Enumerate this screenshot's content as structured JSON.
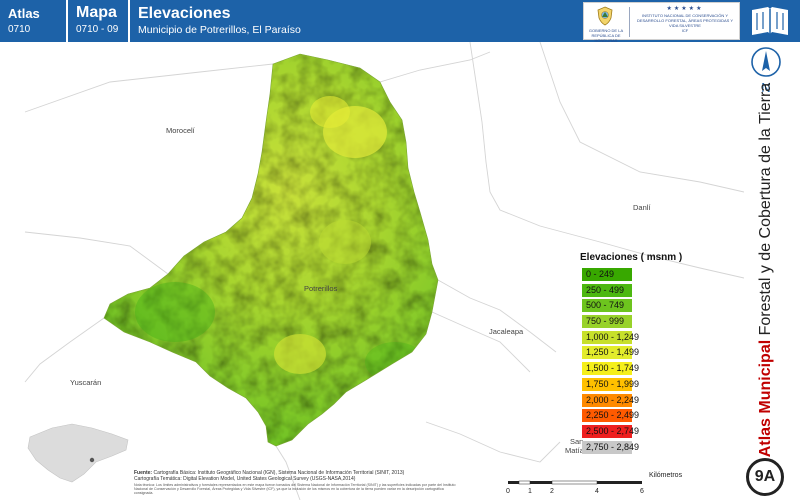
{
  "header": {
    "atlas_label": "Atlas",
    "atlas_code": "0710",
    "mapa_label": "Mapa",
    "mapa_code": "0710 - 09",
    "title": "Elevaciones",
    "subtitle": "Municipio de Potrerillos, El Paraíso"
  },
  "logos": {
    "gov_text": "GOBIERNO DE LA REPÚBLICA DE HONDURAS",
    "icf_stars": "★★★★★",
    "icf_text": "INSTITUTO NACIONAL DE CONSERVACIÓN Y DESARROLLO FORESTAL, ÁREAS PROTEGIDAS Y VIDA SILVESTRE",
    "icf_acronym": "ICF"
  },
  "sidebar": {
    "north": "N",
    "title_bold": "Atlas Municipal",
    "title_rest": " Forestal y de Cobertura de la Tierra",
    "badge": "9A"
  },
  "map": {
    "places": {
      "morocell": "Morocelí",
      "danli": "Danlí",
      "potrerillos": "Potrerillos",
      "jacaleapa": "Jacaleapa",
      "yuscaran": "Yuscarán",
      "san_matias_1": "San",
      "san_matias_2": "Matías"
    }
  },
  "legend": {
    "title": "Elevaciones ( msnm )",
    "items": [
      {
        "label": "0 - 249",
        "color": "#38a800"
      },
      {
        "label": "250 - 499",
        "color": "#4db810"
      },
      {
        "label": "500 - 749",
        "color": "#6dc41e"
      },
      {
        "label": "750 - 999",
        "color": "#98d22a"
      },
      {
        "label": "1,000 - 1,249",
        "color": "#c7e02b"
      },
      {
        "label": "1,250 - 1,499",
        "color": "#e3ec2c"
      },
      {
        "label": "1,500 - 1,749",
        "color": "#f5ef1a"
      },
      {
        "label": "1,750 - 1,999",
        "color": "#ffc000"
      },
      {
        "label": "2,000 - 2,249",
        "color": "#ff8a00"
      },
      {
        "label": "2,250 - 2,499",
        "color": "#ff5a00"
      },
      {
        "label": "2,500 - 2,749",
        "color": "#ee2020"
      },
      {
        "label": "2,750 - 2,849",
        "color": "#c8c8c8"
      }
    ]
  },
  "sources": {
    "label": "Fuente:",
    "line1": "Cartografía Básica: Instituto Geográfico Nacional (IGN), Sistema Nacional de Información Territorial (SINIT, 2013)",
    "line2": "Cartografía Temática: Digital Elevation Model, United States Geological Survey (USGS-NASA,2014)",
    "note": "Nota técnica: Los límites administrativos y forestales representados en este mapa fueron tomados del Sistema Nacional de Información Territorial (SINIT) y las superficies indicadas por parte del Instituto Nacional de Conservación y Desarrollo Forestal, Áreas Protegidas y Vida Silvestre (ICF), ya que la inclusión de los mismos en la cobertura de la tierra pueden variar en la descripción cartográfica consignada."
  },
  "scale": {
    "unit": "Kilómetros",
    "ticks": [
      "0",
      "1",
      "2",
      "4",
      "6"
    ]
  },
  "colors": {
    "header": "#1d62a8",
    "accent_red": "#c00000"
  }
}
